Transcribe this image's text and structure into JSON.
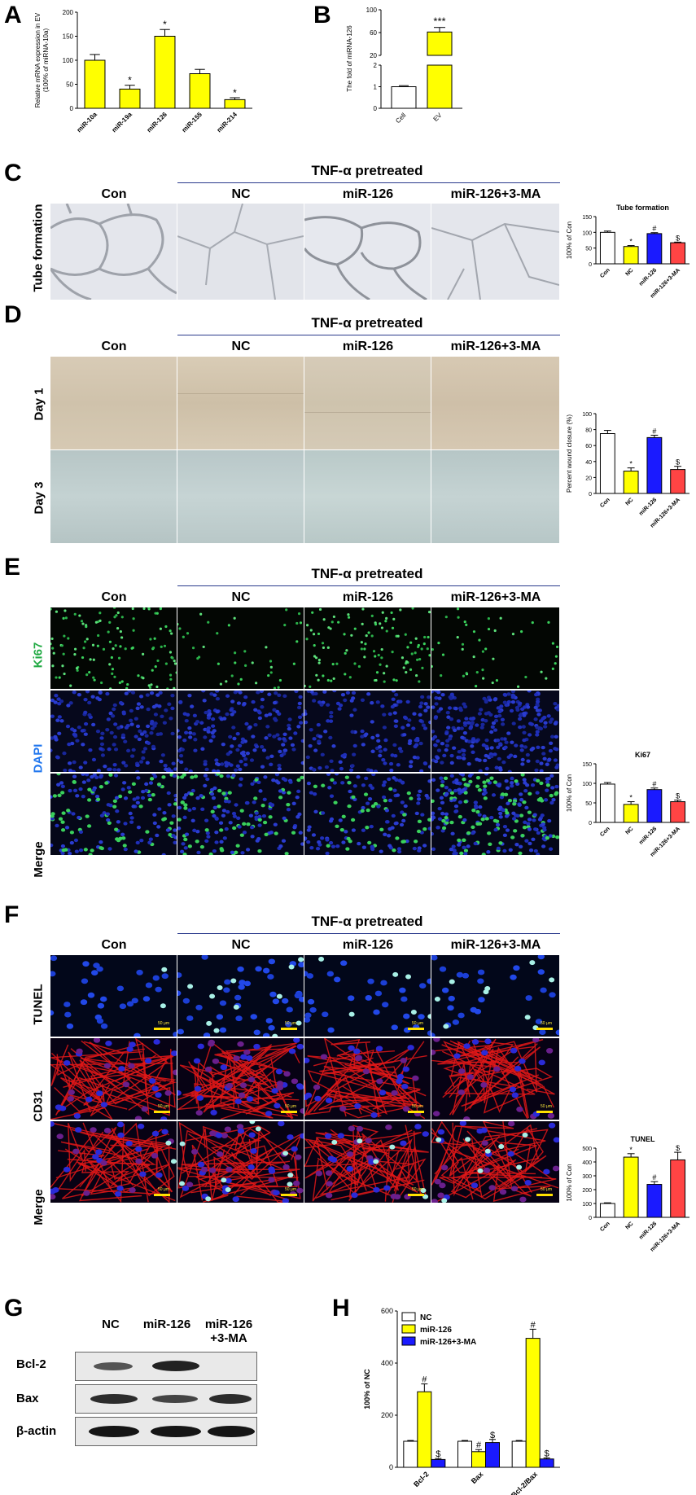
{
  "panels": {
    "A": "A",
    "B": "B",
    "C": "C",
    "D": "D",
    "E": "E",
    "F": "F",
    "G": "G",
    "H": "H"
  },
  "headers": {
    "tnf": "TNF-α pretreated",
    "con": "Con",
    "nc": "NC",
    "mir126": "miR-126",
    "mir126ma": "miR-126+3-MA"
  },
  "row_labels": {
    "tube": "Tube formation",
    "day1": "Day 1",
    "day3": "Day 3",
    "ki67": "Ki67",
    "dapi": "DAPI",
    "merge": "Merge",
    "tunel": "TUNEL",
    "cd31": "CD31"
  },
  "colors": {
    "white": "#ffffff",
    "yellow": "#ffff00",
    "blue": "#1a1aff",
    "red": "#ff4444",
    "ki67_green": "#22aa44",
    "dapi_blue": "#2277ee",
    "header_line": "#2a3a8c",
    "scalebar": "#ffe000"
  },
  "wb": {
    "cols": [
      "NC",
      "miR-126",
      "miR-126",
      "+3-MA"
    ],
    "rows": [
      "Bcl-2",
      "Bax",
      "β-actin"
    ]
  },
  "scale_text": "50 μm",
  "chart_data": [
    {
      "id": "A",
      "type": "bar",
      "categories": [
        "miR-10a",
        "miR-19a",
        "miR-126",
        "miR-155",
        "miR-214"
      ],
      "values": [
        100,
        40,
        150,
        72,
        18
      ],
      "errors": [
        12,
        8,
        14,
        9,
        4
      ],
      "marks": [
        "",
        "*",
        "*",
        "",
        "*"
      ],
      "ylabel_line1": "Relative mRNA expression in EV",
      "ylabel_line2": "(100% of miRNA-10a)",
      "ylim": [
        0,
        200
      ],
      "yticks": [
        "0",
        "50",
        "100",
        "150",
        "200"
      ],
      "bar_color": "#ffff00"
    },
    {
      "id": "B",
      "type": "bar",
      "categories": [
        "Cell",
        "EV"
      ],
      "values": [
        1,
        61
      ],
      "errors": [
        0.05,
        8
      ],
      "marks": [
        "",
        "***"
      ],
      "ylabel": "The fold of miRNA-126",
      "yticks_upper": [
        "20",
        "60",
        "100"
      ],
      "yticks_lower": [
        "0",
        "1",
        "2"
      ],
      "bar_colors": [
        "#ffffff",
        "#ffff00"
      ]
    },
    {
      "id": "C",
      "type": "bar",
      "title": "Tube formation",
      "categories": [
        "Con",
        "NC",
        "miR-126",
        "miR-126+3-MA"
      ],
      "values": [
        100,
        55,
        96,
        67
      ],
      "errors": [
        4,
        3,
        3,
        2
      ],
      "marks": [
        "",
        "*",
        "#",
        "$"
      ],
      "ylabel": "100% of Con",
      "ylim": [
        0,
        150
      ],
      "yticks": [
        "0",
        "50",
        "100",
        "150"
      ]
    },
    {
      "id": "D",
      "type": "bar",
      "categories": [
        "Con",
        "NC",
        "miR-126",
        "miR-126+3-MA"
      ],
      "values": [
        75,
        28,
        70,
        30
      ],
      "errors": [
        4,
        4,
        3,
        4
      ],
      "marks": [
        "",
        "*",
        "#",
        "$"
      ],
      "ylabel": "Percent wound closure (%)",
      "ylim": [
        0,
        100
      ],
      "yticks": [
        "0",
        "20",
        "40",
        "60",
        "80",
        "100"
      ]
    },
    {
      "id": "E",
      "type": "bar",
      "title": "Ki67",
      "categories": [
        "Con",
        "NC",
        "miR-126",
        "miR-126+3-MA"
      ],
      "values": [
        98,
        46,
        84,
        53
      ],
      "errors": [
        4,
        7,
        4,
        4
      ],
      "marks": [
        "",
        "*",
        "#",
        "$"
      ],
      "ylabel": "100% of Con",
      "ylim": [
        0,
        150
      ],
      "yticks": [
        "0",
        "50",
        "100",
        "150"
      ]
    },
    {
      "id": "F",
      "type": "bar",
      "title": "TUNEL",
      "categories": [
        "Con",
        "NC",
        "miR-126",
        "miR-126+3-MA"
      ],
      "values": [
        100,
        435,
        238,
        415
      ],
      "errors": [
        5,
        25,
        20,
        55
      ],
      "marks": [
        "",
        "*",
        "#",
        "$"
      ],
      "ylabel": "100% of Con",
      "ylim": [
        0,
        500
      ],
      "yticks": [
        "0",
        "100",
        "200",
        "300",
        "400",
        "500"
      ]
    },
    {
      "id": "H",
      "type": "bar",
      "categories": [
        "Bcl-2",
        "Bax",
        "Bcl-2/Bax"
      ],
      "series": [
        {
          "name": "NC",
          "values": [
            100,
            100,
            100
          ],
          "errors": [
            3,
            3,
            3
          ],
          "marks": [
            "",
            "",
            ""
          ]
        },
        {
          "name": "miR-126",
          "values": [
            290,
            60,
            495
          ],
          "errors": [
            30,
            8,
            35
          ],
          "marks": [
            "#",
            "#",
            "#"
          ]
        },
        {
          "name": "miR-126+3-MA",
          "values": [
            30,
            95,
            32
          ],
          "errors": [
            4,
            12,
            4
          ],
          "marks": [
            "$",
            "$",
            "$"
          ]
        }
      ],
      "ylabel": "100% of NC",
      "ylim": [
        0,
        600
      ],
      "yticks": [
        "0",
        "200",
        "400",
        "600"
      ]
    }
  ]
}
